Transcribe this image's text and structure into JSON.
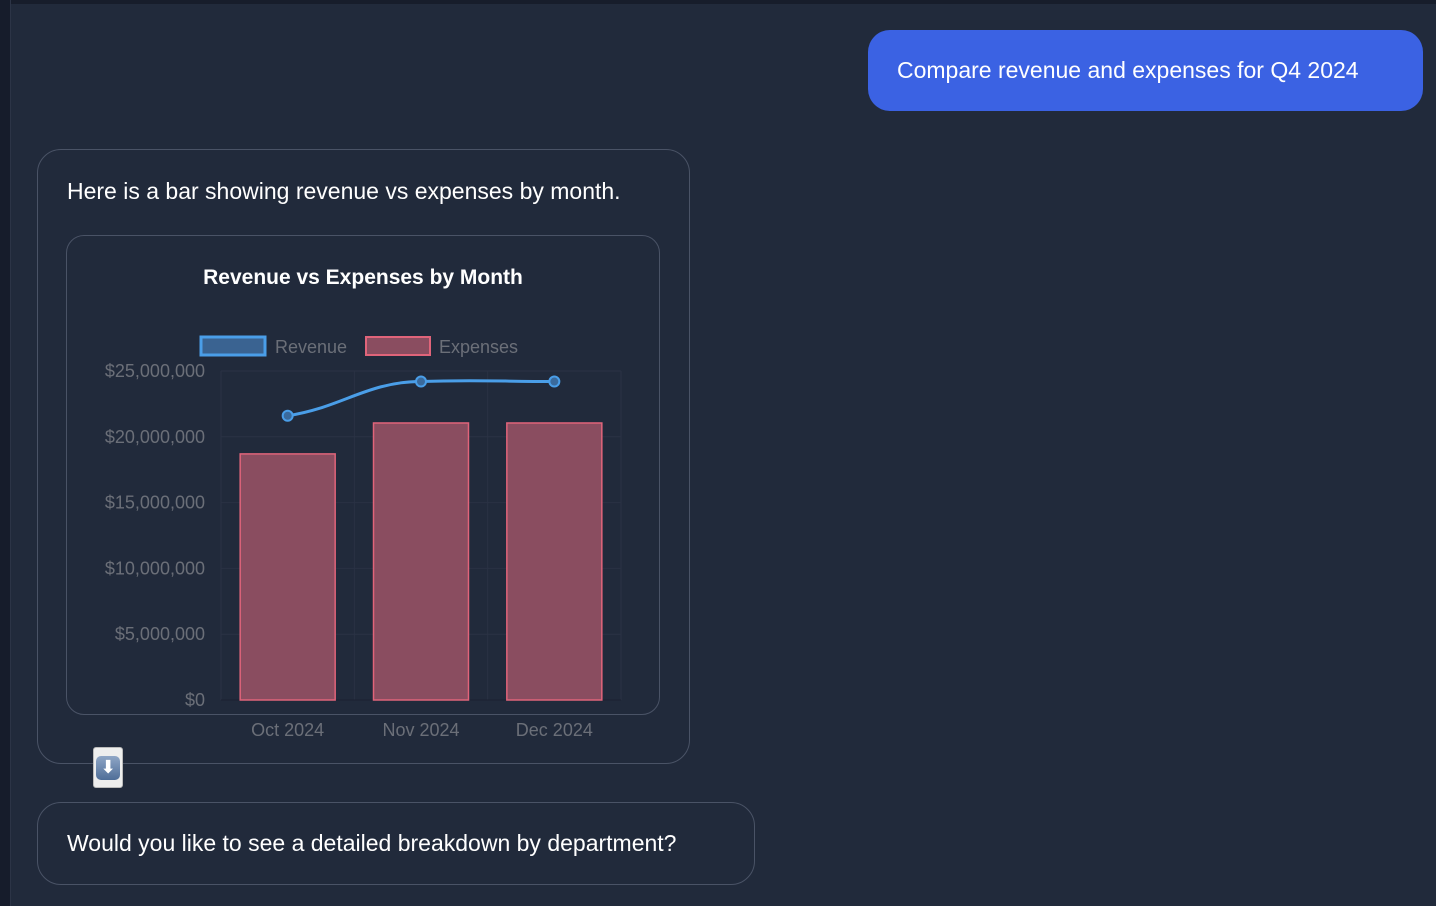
{
  "user_message": "Compare revenue and expenses for Q4 2024",
  "bot_message": "Here is a bar showing revenue vs expenses by month.",
  "followup_message": "Would you like to see a detailed breakdown by department?",
  "download_icon": "down-arrow-button-icon",
  "colors": {
    "revenue": "#4a9ee8",
    "expenses": "#e0647a",
    "expenses_fill": "#8a4d60",
    "user_bubble": "#3b62e3"
  },
  "chart_data": {
    "type": "bar",
    "title": "Revenue vs Expenses by Month",
    "categories": [
      "Oct 2024",
      "Nov 2024",
      "Dec 2024"
    ],
    "series": [
      {
        "name": "Revenue",
        "type": "line",
        "values": [
          21600000,
          24200000,
          24200000
        ]
      },
      {
        "name": "Expenses",
        "type": "bar",
        "values": [
          18700000,
          21050000,
          21050000
        ]
      }
    ],
    "yticks": [
      "$0",
      "$5,000,000",
      "$10,000,000",
      "$15,000,000",
      "$20,000,000",
      "$25,000,000"
    ],
    "ylim": [
      0,
      25000000
    ],
    "legend": "top",
    "grid": true
  }
}
